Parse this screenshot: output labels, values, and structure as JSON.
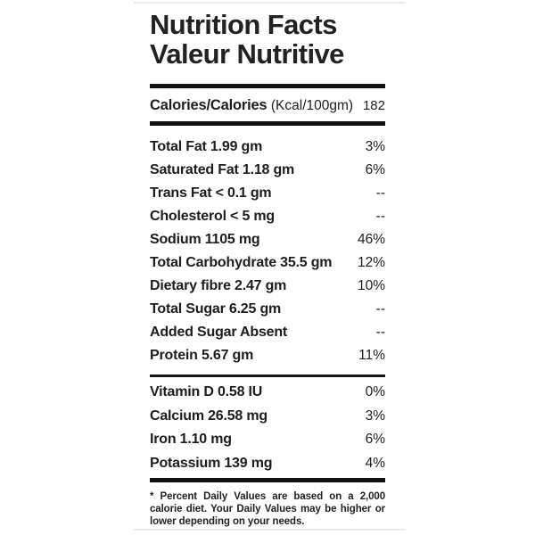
{
  "meta": {
    "background_color": "#ffffff",
    "text_color": "#1d1d1d",
    "bar_color": "#121212"
  },
  "title": {
    "line1": "Nutrition Facts",
    "line2": "Valeur Nutritive"
  },
  "calories": {
    "label": "Calories/Calories",
    "unit": "(Kcal/100gm)",
    "value": "182"
  },
  "nutrients": [
    {
      "label": "Total Fat 1.99 gm",
      "dv": "3%"
    },
    {
      "label": "Saturated Fat 1.18 gm",
      "dv": "6%"
    },
    {
      "label": "Trans Fat < 0.1 gm",
      "dv": "--"
    },
    {
      "label": "Cholesterol < 5 mg",
      "dv": "--"
    },
    {
      "label": "Sodium 1105 mg",
      "dv": "46%"
    },
    {
      "label": "Total Carbohydrate 35.5 gm",
      "dv": "12%"
    },
    {
      "label": "Dietary fibre 2.47 gm",
      "dv": "10%"
    },
    {
      "label": "Total Sugar 6.25 gm",
      "dv": "--"
    },
    {
      "label": "Added Sugar Absent",
      "dv": "--"
    },
    {
      "label": "Protein 5.67 gm",
      "dv": "11%"
    }
  ],
  "micronutrients": [
    {
      "label": "Vitamin D 0.58 IU",
      "dv": "0%"
    },
    {
      "label": "Calcium 26.58 mg",
      "dv": "3%"
    },
    {
      "label": "Iron 1.10 mg",
      "dv": "6%"
    },
    {
      "label": "Potassium 139 mg",
      "dv": "4%"
    }
  ],
  "footnote": "* Percent Daily Values are based on a 2,000 calorie diet. Your Daily Values may be higher or lower depending on your needs."
}
